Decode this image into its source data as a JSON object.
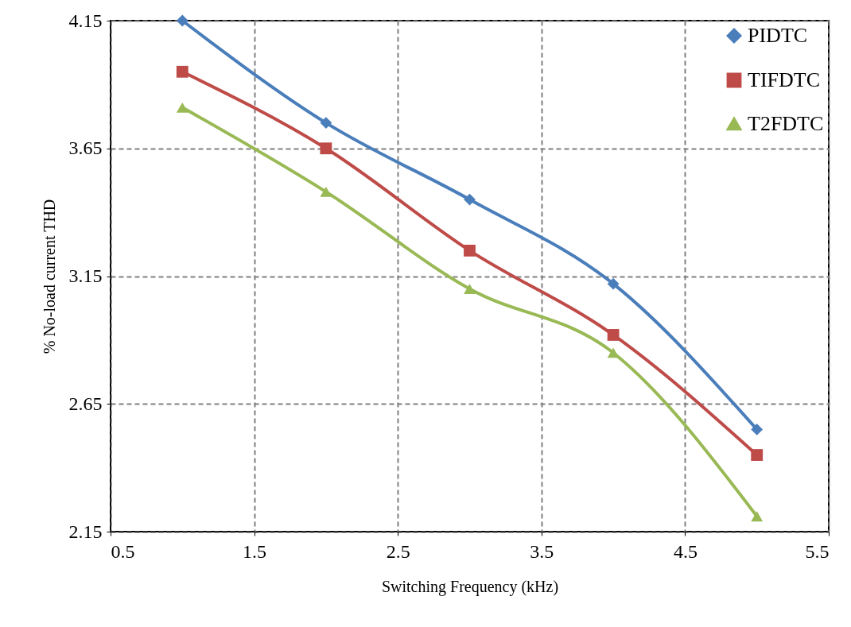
{
  "chart_data": {
    "type": "line",
    "xlabel": "Switching Frequency (kHz)",
    "ylabel": "% No-load current THD",
    "x": [
      1,
      2,
      3,
      4,
      5
    ],
    "series": [
      {
        "name": "PIDTC",
        "color": "#4a7ebb",
        "marker": "diamond",
        "values": [
          4.15,
          3.75,
          3.45,
          3.12,
          2.55
        ]
      },
      {
        "name": "TIFDTC",
        "color": "#be4b48",
        "marker": "square",
        "values": [
          3.95,
          3.65,
          3.25,
          2.92,
          2.45
        ]
      },
      {
        "name": "T2FDTC",
        "color": "#98b954",
        "marker": "triangle",
        "values": [
          3.81,
          3.48,
          3.1,
          2.85,
          2.21
        ]
      }
    ],
    "xlim": [
      0.5,
      5.5
    ],
    "xticks": [
      0.5,
      1.5,
      2.5,
      3.5,
      4.5,
      5.5
    ],
    "ylim": [
      2.15,
      4.15
    ],
    "yticks": [
      2.15,
      2.65,
      3.15,
      3.65,
      4.15
    ],
    "grid": true,
    "legend": "top right",
    "line_style": "solid"
  }
}
